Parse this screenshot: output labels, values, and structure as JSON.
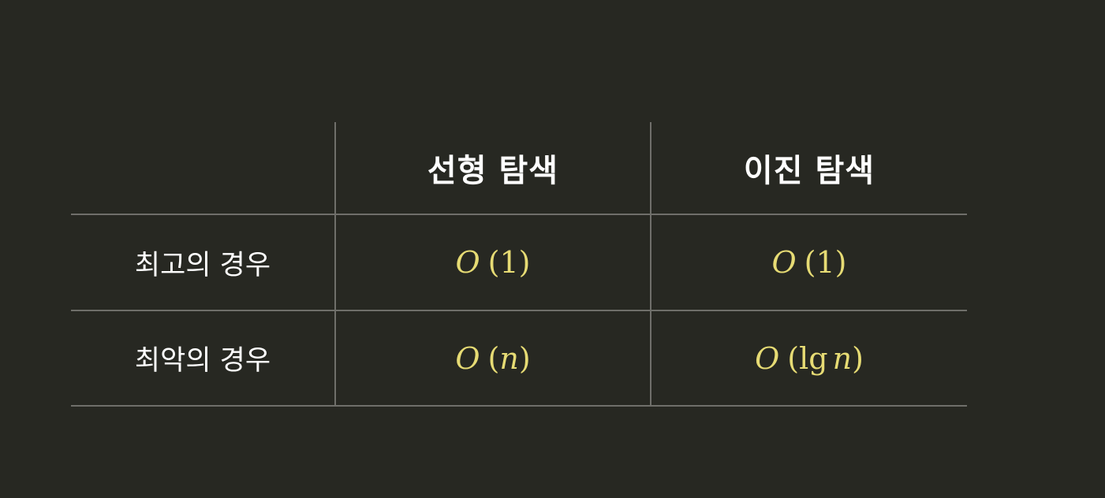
{
  "table": {
    "columns": [
      "",
      "선형 탐색",
      "이진 탐색"
    ],
    "rows": [
      {
        "label": "최고의 경우",
        "linear": {
          "func": "O",
          "open": "(",
          "arg": "1",
          "close": ")"
        },
        "binary": {
          "func": "O",
          "open": "(",
          "arg": "1",
          "close": ")"
        }
      },
      {
        "label": "최악의 경우",
        "linear": {
          "func": "O",
          "open": "(",
          "arg": "n",
          "close": ")"
        },
        "binary": {
          "func": "O",
          "open": "(",
          "prefix": "lg",
          "arg": "n",
          "close": ")"
        }
      }
    ]
  },
  "colors": {
    "background": "#272822",
    "grid_line": "#6f6f6a",
    "text": "#ffffff",
    "math": "#e6db74"
  }
}
